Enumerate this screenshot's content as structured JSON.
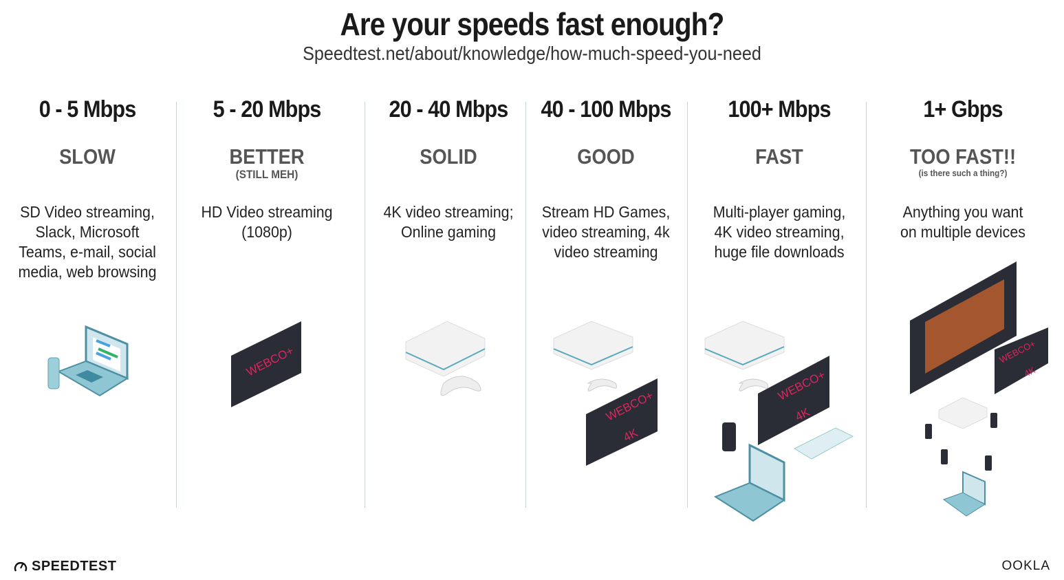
{
  "header": {
    "title": "Are your speeds fast enough?",
    "source": "Speedtest.net/about/knowledge/how-much-speed-you-need"
  },
  "tiers": [
    {
      "speed": "0 - 5 Mbps",
      "rating": "SLOW",
      "note": "",
      "desc": [
        "SD Video streaming,",
        "Slack, Microsoft",
        "Teams, e-mail, social",
        "media, web browsing"
      ]
    },
    {
      "speed": "5 - 20 Mbps",
      "rating": "BETTER",
      "note": "(STILL MEH)",
      "desc": [
        "HD Video streaming",
        "(1080p)"
      ]
    },
    {
      "speed": "20 - 40 Mbps",
      "rating": "SOLID",
      "note": "",
      "desc": [
        "4K video streaming;",
        "Online gaming"
      ]
    },
    {
      "speed": "40 - 100 Mbps",
      "rating": "GOOD",
      "note": "",
      "desc": [
        "Stream HD Games,",
        "video streaming, 4k",
        "video streaming"
      ]
    },
    {
      "speed": "100+ Mbps",
      "rating": "FAST",
      "note": "",
      "desc": [
        "Multi-player gaming,",
        "4K video streaming,",
        "huge file downloads"
      ]
    },
    {
      "speed": "1+ Gbps",
      "rating": "TOO FAST!!",
      "note": "(is there such a thing?)",
      "desc": [
        "Anything you want",
        "on multiple devices"
      ]
    }
  ],
  "tv_logo": "WEBCO+",
  "tv_4k": "4K",
  "footer": {
    "brand": "SPEEDTEST",
    "partner": "OOKLA"
  },
  "colors": {
    "accent_tv_text": "#e0245e",
    "tv": "#2a2d36",
    "device_teal": "#8fc6d3",
    "divider": "#c9d3d6"
  }
}
